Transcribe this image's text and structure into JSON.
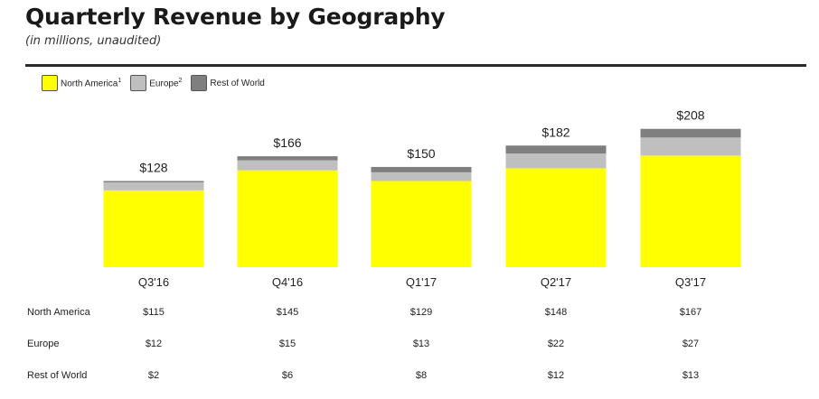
{
  "title": "Quarterly Revenue by Geography",
  "subtitle": "(in millions, unaudited)",
  "legend": [
    {
      "label": "North America",
      "sup": "1",
      "color": "#ffff00"
    },
    {
      "label": "Europe",
      "sup": "2",
      "color": "#bfbfbf"
    },
    {
      "label": "Rest of World",
      "sup": "",
      "color": "#7f7f7f"
    }
  ],
  "chart_data": {
    "type": "bar",
    "stacked": true,
    "title": "Quarterly Revenue by Geography",
    "subtitle": "(in millions, unaudited)",
    "categories": [
      "Q3'16",
      "Q4'16",
      "Q1'17",
      "Q2'17",
      "Q3'17"
    ],
    "series": [
      {
        "name": "North America",
        "values": [
          115,
          145,
          129,
          148,
          167
        ],
        "color": "#ffff00"
      },
      {
        "name": "Europe",
        "values": [
          12,
          15,
          13,
          22,
          27
        ],
        "color": "#bfbfbf"
      },
      {
        "name": "Rest of World",
        "values": [
          2,
          6,
          8,
          12,
          13
        ],
        "color": "#7f7f7f"
      }
    ],
    "totals": [
      128,
      166,
      150,
      182,
      208
    ],
    "total_labels": [
      "$128",
      "$166",
      "$150",
      "$182",
      "$208"
    ],
    "ylim": [
      0,
      208
    ],
    "grid": false,
    "legend_position": "top-left"
  },
  "table": {
    "rows": [
      {
        "label": "North America",
        "values": [
          "$115",
          "$145",
          "$129",
          "$148",
          "$167"
        ]
      },
      {
        "label": "Europe",
        "values": [
          "$12",
          "$15",
          "$13",
          "$22",
          "$27"
        ]
      },
      {
        "label": "Rest of World",
        "values": [
          "$2",
          "$6",
          "$8",
          "$12",
          "$13"
        ]
      }
    ]
  }
}
